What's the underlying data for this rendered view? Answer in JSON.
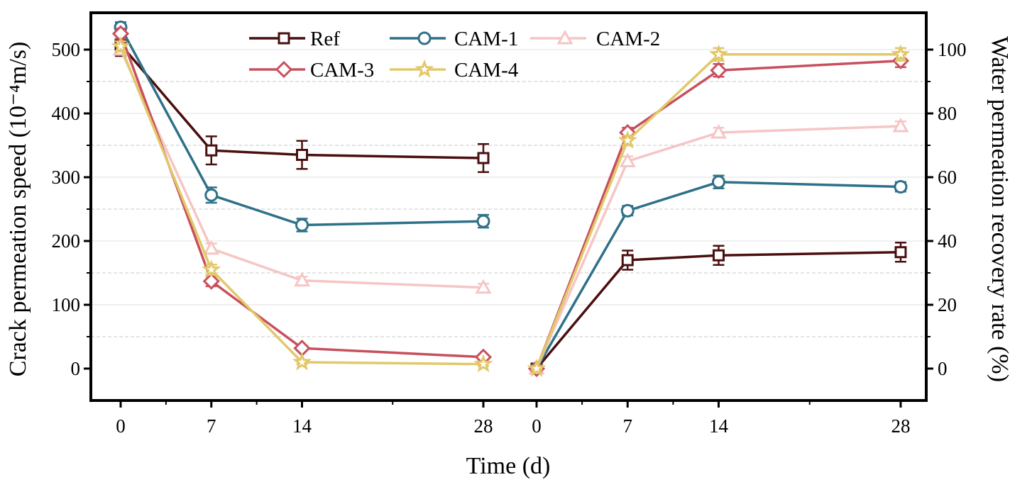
{
  "chart_data": {
    "type": "line",
    "xlabel": "Time (d)",
    "ylabel_left": "Crack permeation speed (10⁻⁴m/s)",
    "ylabel_right": "Water permeation recovery rate (%)",
    "x_tick_labels_left": [
      "0",
      "7",
      "14",
      "28"
    ],
    "x_tick_labels_right": [
      "0",
      "7",
      "14",
      "28"
    ],
    "y_left_ticks": [
      "0",
      "100",
      "200",
      "300",
      "400",
      "500"
    ],
    "y_right_ticks": [
      "0",
      "20",
      "40",
      "60",
      "80",
      "100"
    ],
    "y_left_range": [
      -55,
      550
    ],
    "y_right_range": [
      -11,
      110
    ],
    "grid": "horizontal dashed",
    "legend_position": "top-center",
    "series": [
      {
        "name": "Ref",
        "color": "#4a0f0f",
        "marker": "square",
        "left": {
          "x": [
            0,
            7,
            14,
            28
          ],
          "y": [
            508,
            342,
            335,
            330
          ],
          "err": [
            18,
            22,
            22,
            22
          ]
        },
        "right": {
          "x": [
            0,
            7,
            14,
            28
          ],
          "y": [
            0,
            34,
            35.5,
            36.5
          ],
          "err": [
            1,
            3,
            3,
            3
          ]
        }
      },
      {
        "name": "CAM-1",
        "color": "#2e7189",
        "marker": "circle",
        "left": {
          "x": [
            0,
            7,
            14,
            28
          ],
          "y": [
            535,
            272,
            225,
            231
          ],
          "err": [
            8,
            12,
            10,
            10
          ]
        },
        "right": {
          "x": [
            0,
            7,
            14,
            28
          ],
          "y": [
            0,
            49.5,
            58.5,
            57
          ],
          "err": [
            0.5,
            1.5,
            2,
            1.5
          ]
        }
      },
      {
        "name": "CAM-2",
        "color": "#f5c6c4",
        "marker": "triangle",
        "left": {
          "x": [
            0,
            7,
            14,
            28
          ],
          "y": [
            500,
            188,
            138,
            127
          ],
          "err": [
            8,
            8,
            6,
            6
          ]
        },
        "right": {
          "x": [
            0,
            7,
            14,
            28
          ],
          "y": [
            0,
            65,
            74,
            76
          ],
          "err": [
            0.5,
            1.5,
            1.5,
            1.5
          ]
        }
      },
      {
        "name": "CAM-3",
        "color": "#c8505e",
        "marker": "diamond",
        "left": {
          "x": [
            0,
            7,
            14,
            28
          ],
          "y": [
            525,
            137,
            32,
            18
          ],
          "err": [
            8,
            8,
            4,
            3
          ]
        },
        "right": {
          "x": [
            0,
            7,
            14,
            28
          ],
          "y": [
            0,
            74,
            93.5,
            96.5
          ],
          "err": [
            0.5,
            1.5,
            2,
            2
          ]
        }
      },
      {
        "name": "CAM-4",
        "color": "#e2c86a",
        "marker": "star",
        "left": {
          "x": [
            0,
            7,
            14,
            28
          ],
          "y": [
            505,
            155,
            10,
            7
          ],
          "err": [
            8,
            8,
            3,
            3
          ]
        },
        "right": {
          "x": [
            0,
            7,
            14,
            28
          ],
          "y": [
            0,
            71.5,
            98.5,
            98.5
          ],
          "err": [
            0.5,
            1.5,
            2,
            2
          ]
        }
      }
    ]
  }
}
